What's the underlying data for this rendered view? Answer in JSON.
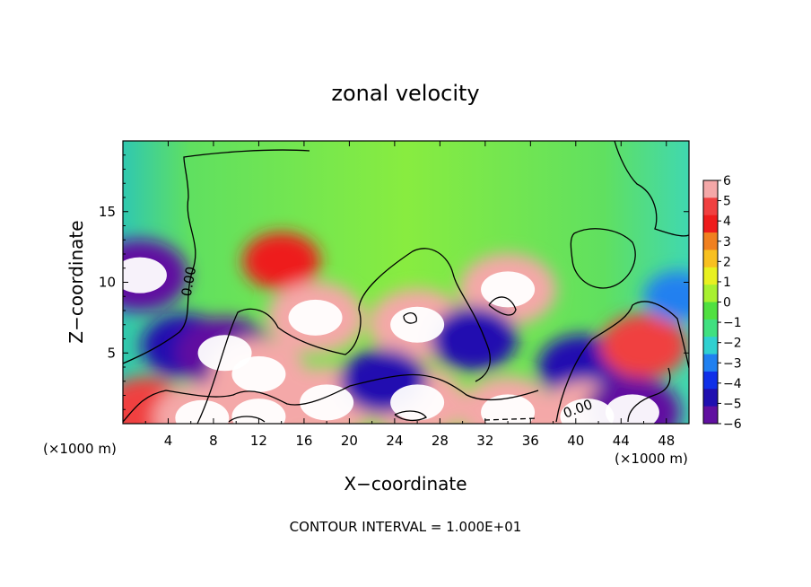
{
  "chart_data": {
    "type": "heatmap",
    "title": "zonal velocity",
    "xlabel": "X−coordinate",
    "ylabel": "Z−coordinate",
    "x_unit": "(×1000 m)",
    "y_unit": "(×1000 m)",
    "xlim": [
      0,
      50
    ],
    "ylim": [
      0,
      20
    ],
    "x_ticks": [
      4,
      8,
      12,
      16,
      20,
      24,
      28,
      32,
      36,
      40,
      44,
      48
    ],
    "y_ticks": [
      5,
      10,
      15
    ],
    "colorbar": {
      "range": [
        -6,
        6
      ],
      "ticks": [
        "6",
        "5",
        "4",
        "3",
        "2",
        "1",
        "0",
        "−1",
        "−2",
        "−3",
        "−4",
        "−5",
        "−6"
      ],
      "colors": [
        "#f4a8a8",
        "#f04040",
        "#ee1c1c",
        "#f08020",
        "#f8c020",
        "#e8f020",
        "#a8f030",
        "#50e040",
        "#40e080",
        "#30d0d0",
        "#2080f0",
        "#1030e8",
        "#2010b0",
        "#6010a0"
      ]
    },
    "contour_labels": [
      "0.00",
      "0.00"
    ],
    "footer": "CONTOUR INTERVAL = 1.000E+01",
    "features": [
      {
        "x": 1.5,
        "z": 10.5,
        "value": -6
      },
      {
        "x": 5.5,
        "z": 5.5,
        "value": -5
      },
      {
        "x": 9,
        "z": 5,
        "value": -6
      },
      {
        "x": 12,
        "z": 3.5,
        "value": 6
      },
      {
        "x": 14,
        "z": 11.5,
        "value": 4
      },
      {
        "x": 17,
        "z": 7.5,
        "value": 6
      },
      {
        "x": 26,
        "z": 7,
        "value": 6
      },
      {
        "x": 34,
        "z": 9.5,
        "value": 6
      },
      {
        "x": 40.5,
        "z": 4,
        "value": -5
      },
      {
        "x": 46,
        "z": 5.5,
        "value": 5
      },
      {
        "x": 2,
        "z": 1,
        "value": 5
      },
      {
        "x": 7,
        "z": 0.4,
        "value": 6
      },
      {
        "x": 12,
        "z": 0.5,
        "value": 6
      },
      {
        "x": 18,
        "z": 1.5,
        "value": 6
      },
      {
        "x": 26,
        "z": 1.5,
        "value": 6
      },
      {
        "x": 34,
        "z": 0.8,
        "value": 6
      },
      {
        "x": 41,
        "z": 0.5,
        "value": 6
      },
      {
        "x": 45,
        "z": 0.8,
        "value": -6
      },
      {
        "x": 23,
        "z": 3,
        "value": -5
      },
      {
        "x": 31,
        "z": 6,
        "value": -5
      },
      {
        "x": 49,
        "z": 9,
        "value": -3
      }
    ]
  }
}
